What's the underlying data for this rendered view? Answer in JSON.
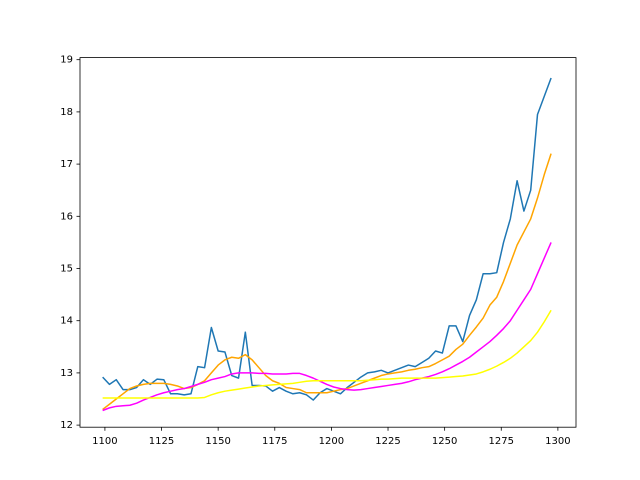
{
  "chart_data": {
    "type": "line",
    "x": [
      1099,
      1102,
      1105,
      1108,
      1111,
      1114,
      1117,
      1120,
      1123,
      1126,
      1129,
      1132,
      1135,
      1138,
      1141,
      1144,
      1147,
      1150,
      1153,
      1156,
      1159,
      1162,
      1165,
      1168,
      1171,
      1174,
      1177,
      1180,
      1183,
      1186,
      1189,
      1192,
      1195,
      1198,
      1201,
      1204,
      1207,
      1210,
      1213,
      1216,
      1219,
      1222,
      1225,
      1228,
      1231,
      1234,
      1237,
      1240,
      1243,
      1246,
      1249,
      1252,
      1255,
      1258,
      1261,
      1264,
      1267,
      1270,
      1273,
      1276,
      1279,
      1282,
      1285,
      1288,
      1291,
      1294,
      1297
    ],
    "series": [
      {
        "color": "#1f77b4",
        "values": [
          12.92,
          12.78,
          12.87,
          12.68,
          12.68,
          12.72,
          12.87,
          12.78,
          12.88,
          12.87,
          12.6,
          12.6,
          12.58,
          12.6,
          13.12,
          13.1,
          13.87,
          13.42,
          13.4,
          12.95,
          12.9,
          13.78,
          12.76,
          12.76,
          12.75,
          12.65,
          12.72,
          12.65,
          12.6,
          12.62,
          12.58,
          12.48,
          12.62,
          12.7,
          12.65,
          12.6,
          12.72,
          12.82,
          12.92,
          13.0,
          13.02,
          13.05,
          13.0,
          13.05,
          13.1,
          13.15,
          13.12,
          13.2,
          13.28,
          13.42,
          13.38,
          13.9,
          13.9,
          13.6,
          14.1,
          14.4,
          14.9,
          14.9,
          14.92,
          15.5,
          15.95,
          16.68,
          16.1,
          16.5,
          17.95,
          18.3,
          18.65
        ]
      },
      {
        "color": "#ffa500",
        "values": [
          12.3,
          12.4,
          12.5,
          12.6,
          12.7,
          12.75,
          12.78,
          12.8,
          12.8,
          12.8,
          12.78,
          12.75,
          12.7,
          12.72,
          12.78,
          12.85,
          13.0,
          13.15,
          13.25,
          13.3,
          13.28,
          13.35,
          13.25,
          13.1,
          12.95,
          12.85,
          12.8,
          12.72,
          12.7,
          12.68,
          12.62,
          12.62,
          12.62,
          12.62,
          12.65,
          12.68,
          12.7,
          12.75,
          12.8,
          12.85,
          12.9,
          12.95,
          12.98,
          13.0,
          13.02,
          13.05,
          13.07,
          13.1,
          13.12,
          13.18,
          13.25,
          13.32,
          13.45,
          13.55,
          13.72,
          13.88,
          14.05,
          14.3,
          14.45,
          14.75,
          15.1,
          15.45,
          15.7,
          15.95,
          16.35,
          16.8,
          17.2
        ]
      },
      {
        "color": "#ff00ff",
        "values": [
          12.28,
          12.33,
          12.36,
          12.37,
          12.38,
          12.42,
          12.48,
          12.53,
          12.58,
          12.62,
          12.65,
          12.68,
          12.7,
          12.74,
          12.78,
          12.82,
          12.87,
          12.9,
          12.93,
          12.98,
          13.0,
          13.0,
          13.0,
          12.99,
          12.99,
          12.98,
          12.98,
          12.98,
          12.99,
          12.99,
          12.95,
          12.9,
          12.84,
          12.78,
          12.73,
          12.7,
          12.68,
          12.67,
          12.68,
          12.7,
          12.72,
          12.74,
          12.76,
          12.78,
          12.8,
          12.83,
          12.87,
          12.9,
          12.93,
          12.97,
          13.02,
          13.08,
          13.15,
          13.22,
          13.3,
          13.4,
          13.5,
          13.6,
          13.72,
          13.85,
          14.0,
          14.2,
          14.4,
          14.6,
          14.9,
          15.2,
          15.5
        ]
      },
      {
        "color": "#ffff00",
        "values": [
          12.52,
          12.52,
          12.52,
          12.52,
          12.52,
          12.52,
          12.52,
          12.52,
          12.52,
          12.52,
          12.52,
          12.52,
          12.52,
          12.52,
          12.52,
          12.53,
          12.58,
          12.62,
          12.65,
          12.67,
          12.69,
          12.71,
          12.73,
          12.75,
          12.76,
          12.77,
          12.78,
          12.79,
          12.8,
          12.82,
          12.84,
          12.85,
          12.85,
          12.85,
          12.85,
          12.85,
          12.85,
          12.85,
          12.85,
          12.86,
          12.87,
          12.88,
          12.88,
          12.89,
          12.9,
          12.9,
          12.9,
          12.9,
          12.9,
          12.9,
          12.91,
          12.92,
          12.93,
          12.94,
          12.96,
          12.98,
          13.02,
          13.07,
          13.13,
          13.2,
          13.28,
          13.38,
          13.5,
          13.62,
          13.78,
          13.98,
          14.2
        ]
      }
    ],
    "xlim": [
      1089,
      1308
    ],
    "xticks": [
      1100,
      1125,
      1150,
      1175,
      1200,
      1225,
      1250,
      1275,
      1300
    ],
    "ylim": [
      11.96,
      19.04
    ],
    "yticks": [
      12,
      13,
      14,
      15,
      16,
      17,
      18,
      19
    ]
  }
}
